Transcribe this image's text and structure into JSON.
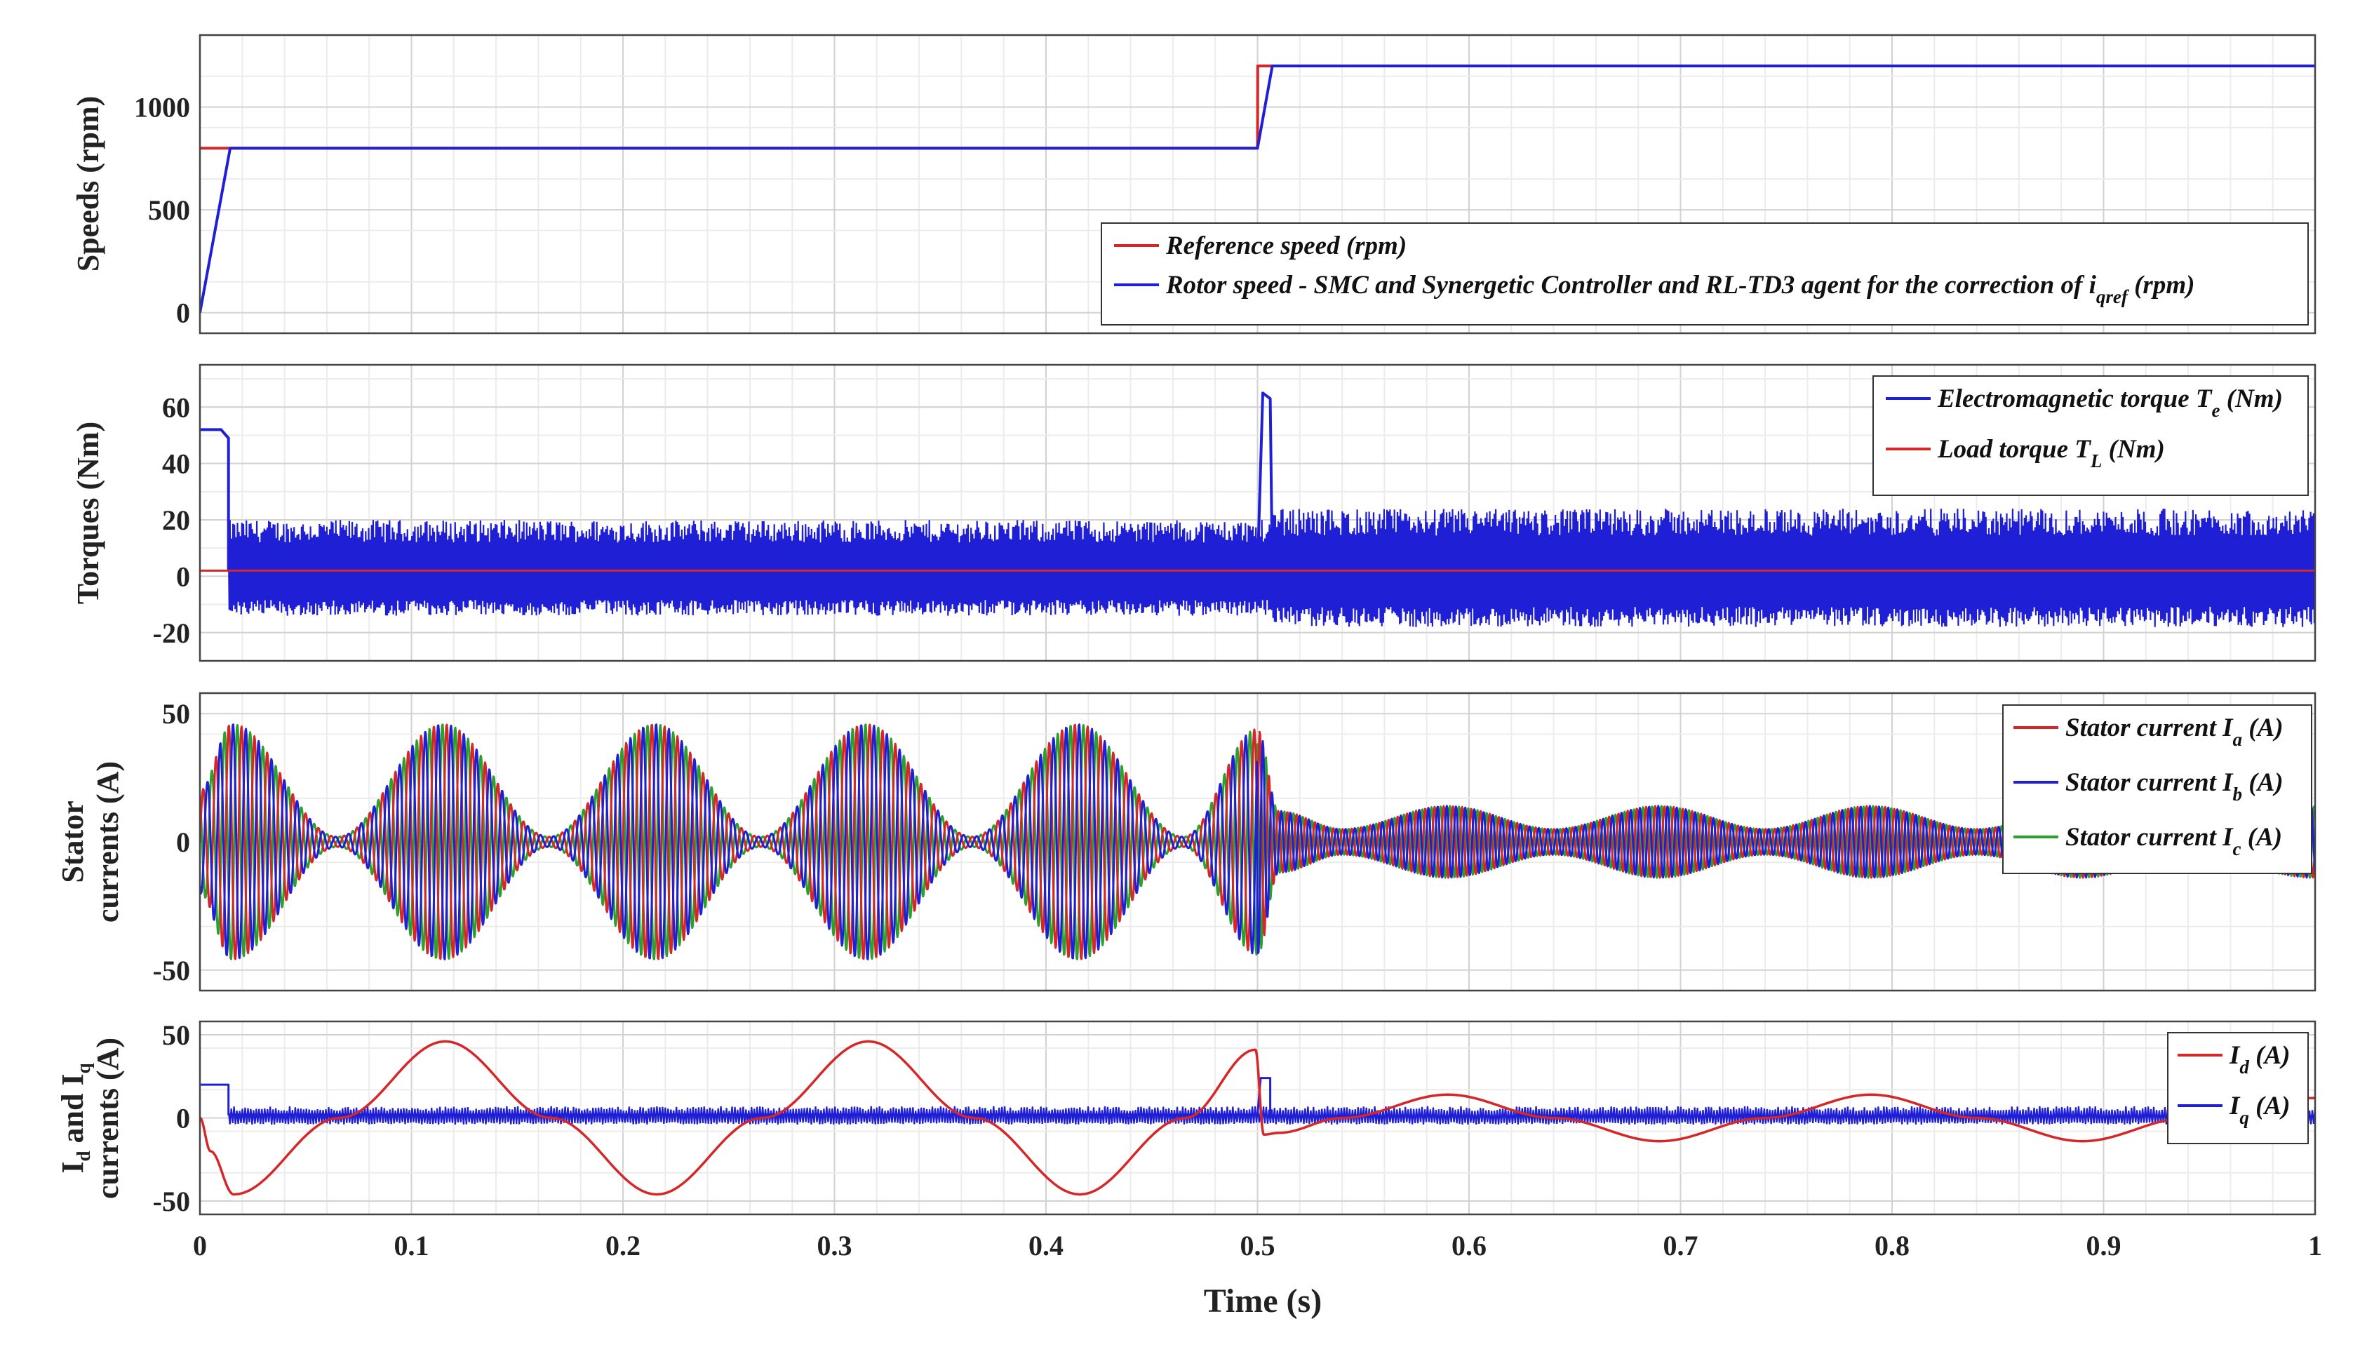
{
  "chart_data": [
    {
      "type": "line",
      "ylabel": "Speeds (rpm)",
      "xlim": [
        0,
        1
      ],
      "ylim": [
        -100,
        1350
      ],
      "yticks": [
        0,
        500,
        1000
      ],
      "grid": true,
      "legend_position": "bottom-right",
      "series": [
        {
          "name": "Reference speed (rpm)",
          "color": "#d62728",
          "x": [
            0,
            0.0143,
            0.5,
            0.5001,
            1.0
          ],
          "y": [
            800,
            800,
            800,
            1200,
            1200
          ]
        },
        {
          "name": "Rotor speed - SMC and Synergetic Controller and RL-TD3 agent for the correction of i",
          "name_sub": "qref",
          "name_suffix": " (rpm)",
          "color": "#1f1fd6",
          "x": [
            0,
            0.0143,
            0.5,
            0.507,
            1.0
          ],
          "y": [
            0,
            800,
            800,
            1200,
            1200
          ]
        }
      ]
    },
    {
      "type": "line",
      "ylabel": "Torques (Nm)",
      "xlim": [
        0,
        1
      ],
      "ylim": [
        -30,
        75
      ],
      "yticks": [
        -20,
        0,
        20,
        40,
        60
      ],
      "grid": true,
      "legend_position": "top-right",
      "series": [
        {
          "name": "Electromagnetic torque T",
          "name_sub": "e",
          "name_suffix": " (Nm)",
          "color": "#1f1fd6",
          "description": "start-up torque about 52 Nm until 0.013 s, then switching ripple about +20 / -14 Nm (about +24 / -18 Nm after 0.51 s), speed-step spike to 65 Nm at 0.502 to 0.507 s",
          "x": [
            0,
            0.01,
            0.0135,
            0.0135,
            0.5,
            0.5025,
            0.506,
            0.507,
            1.0
          ],
          "y": [
            52,
            52,
            49,
            2,
            2,
            65,
            63,
            2,
            2
          ],
          "ripple": [
            [
              0.0135,
              0.507,
              20,
              -14
            ],
            [
              0.507,
              1.0,
              24,
              -18
            ]
          ]
        },
        {
          "name": "Load torque T",
          "name_sub": "L",
          "name_suffix": " (Nm)",
          "color": "#d62728",
          "x": [
            0,
            1.0
          ],
          "y": [
            2,
            2
          ]
        }
      ]
    },
    {
      "type": "line",
      "ylabel": "Stator currents (A)",
      "ylabel_lines": [
        "Stator",
        "currents (A)"
      ],
      "xlim": [
        0,
        1
      ],
      "ylim": [
        -58,
        58
      ],
      "yticks": [
        -50,
        0,
        50
      ],
      "grid": true,
      "legend_position": "right",
      "envelope": {
        "description": "three-phase currents, amplitude 46 A beating with 0.1 s period before 0.5 s, 14 A beating after 0.5 s",
        "phases": [
          {
            "t": 0.0,
            "A": 20
          },
          {
            "t": 0.015,
            "A": 46
          },
          {
            "t": 0.065,
            "A": 2
          },
          {
            "t": 0.115,
            "A": 46
          },
          {
            "t": 0.165,
            "A": 2
          },
          {
            "t": 0.215,
            "A": 46
          },
          {
            "t": 0.265,
            "A": 2
          },
          {
            "t": 0.315,
            "A": 46
          },
          {
            "t": 0.365,
            "A": 2
          },
          {
            "t": 0.415,
            "A": 46
          },
          {
            "t": 0.465,
            "A": 2
          },
          {
            "t": 0.5,
            "A": 44
          },
          {
            "t": 0.51,
            "A": 12
          },
          {
            "t": 0.54,
            "A": 5
          },
          {
            "t": 0.59,
            "A": 14
          },
          {
            "t": 0.64,
            "A": 5
          },
          {
            "t": 0.69,
            "A": 14
          },
          {
            "t": 0.74,
            "A": 5
          },
          {
            "t": 0.79,
            "A": 14
          },
          {
            "t": 0.84,
            "A": 5
          },
          {
            "t": 0.89,
            "A": 14
          },
          {
            "t": 0.94,
            "A": 5
          },
          {
            "t": 1.0,
            "A": 14
          }
        ]
      },
      "series": [
        {
          "name": "Stator current I",
          "name_sub": "a",
          "name_suffix": " (A)",
          "color": "#d62728"
        },
        {
          "name": "Stator current I",
          "name_sub": "b",
          "name_suffix": " (A)",
          "color": "#1f1fd6"
        },
        {
          "name": "Stator current I",
          "name_sub": "c",
          "name_suffix": " (A)",
          "color": "#2ca02c"
        }
      ]
    },
    {
      "type": "line",
      "ylabel": "Id and Iq currents (A)",
      "ylabel_lines": [
        "I",
        "d",
        " and I",
        "q",
        "currents (A)"
      ],
      "xlabel": "Time (s)",
      "xlim": [
        0,
        1
      ],
      "xticks": [
        0,
        0.1,
        0.2,
        0.3,
        0.4,
        0.5,
        0.6,
        0.7,
        0.8,
        0.9,
        1
      ],
      "xticklabels": [
        "0",
        "0.1",
        "0.2",
        "0.3",
        "0.4",
        "0.5",
        "0.6",
        "0.7",
        "0.8",
        "0.9",
        "1"
      ],
      "ylim": [
        -58,
        58
      ],
      "yticks": [
        -50,
        0,
        50
      ],
      "grid": true,
      "legend_position": "top-right",
      "series": [
        {
          "name": "I",
          "name_sub": "d",
          "name_suffix": " (A)",
          "color": "#d62728",
          "x": [
            0,
            0.005,
            0.016,
            0.066,
            0.116,
            0.166,
            0.216,
            0.266,
            0.316,
            0.366,
            0.416,
            0.466,
            0.499,
            0.503,
            0.51,
            0.54,
            0.59,
            0.64,
            0.69,
            0.74,
            0.79,
            0.84,
            0.89,
            0.94,
            1.0
          ],
          "y": [
            0,
            -20,
            -46,
            0,
            46,
            0,
            -46,
            0,
            46,
            0,
            -46,
            0,
            41,
            -10,
            -9,
            0,
            14,
            0,
            -14,
            0,
            14,
            0,
            -14,
            0,
            12
          ]
        },
        {
          "name": "I",
          "name_sub": "q",
          "name_suffix": " (A)",
          "color": "#1f1fd6",
          "x": [
            0,
            0.0135,
            0.0135,
            0.5,
            0.5015,
            0.506,
            0.506,
            1.0
          ],
          "y": [
            20,
            20,
            2,
            2,
            24,
            24,
            1,
            1
          ],
          "ripple": [
            [
              0.0135,
              1.0,
              7,
              -4
            ]
          ]
        }
      ]
    }
  ]
}
